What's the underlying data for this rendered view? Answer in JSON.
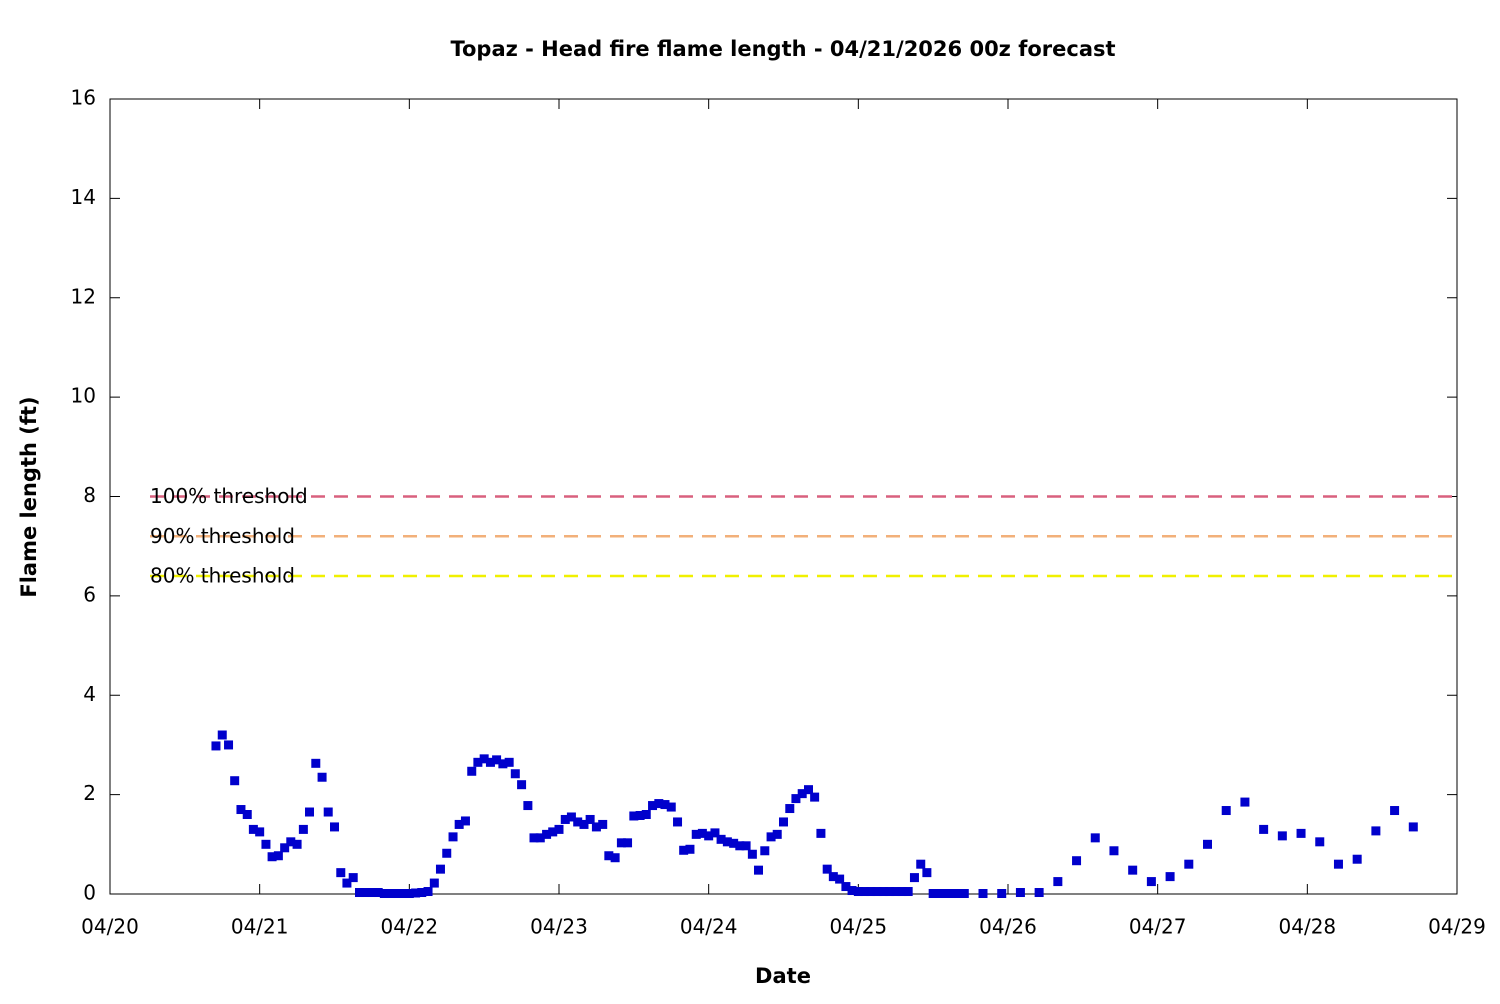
{
  "chart_data": {
    "type": "scatter",
    "title": "Topaz - Head fire flame length - 04/21/2026 00z forecast",
    "xlabel": "Date",
    "ylabel": "Flame length (ft)",
    "color": "#0000cc",
    "xlim": [
      0,
      9
    ],
    "xticks": [
      {
        "value": 0,
        "label": "04/20"
      },
      {
        "value": 1,
        "label": "04/21"
      },
      {
        "value": 2,
        "label": "04/22"
      },
      {
        "value": 3,
        "label": "04/23"
      },
      {
        "value": 4,
        "label": "04/24"
      },
      {
        "value": 5,
        "label": "04/25"
      },
      {
        "value": 6,
        "label": "04/26"
      },
      {
        "value": 7,
        "label": "04/27"
      },
      {
        "value": 8,
        "label": "04/28"
      },
      {
        "value": 9,
        "label": "04/29"
      }
    ],
    "ylim": [
      0,
      16
    ],
    "yticks": [
      0,
      2,
      4,
      6,
      8,
      10,
      12,
      14,
      16
    ],
    "thresholds": [
      {
        "name": "100% threshold",
        "value": 8,
        "color": "#d9607e"
      },
      {
        "name": "90% threshold",
        "value": 7.2,
        "color": "#f2b07a"
      },
      {
        "name": "80% threshold",
        "value": 6.4,
        "color": "#f0f000"
      }
    ],
    "x": [
      0.708,
      0.75,
      0.792,
      0.833,
      0.875,
      0.917,
      0.958,
      1,
      1.042,
      1.083,
      1.125,
      1.167,
      1.208,
      1.25,
      1.292,
      1.333,
      1.375,
      1.417,
      1.458,
      1.5,
      1.542,
      1.583,
      1.625,
      1.667,
      1.708,
      1.75,
      1.792,
      1.833,
      1.875,
      1.917,
      1.958,
      2,
      2.042,
      2.083,
      2.125,
      2.167,
      2.208,
      2.25,
      2.292,
      2.333,
      2.375,
      2.417,
      2.458,
      2.5,
      2.542,
      2.583,
      2.625,
      2.667,
      2.708,
      2.75,
      2.792,
      2.833,
      2.875,
      2.917,
      2.958,
      3,
      3.042,
      3.083,
      3.125,
      3.167,
      3.208,
      3.25,
      3.292,
      3.333,
      3.375,
      3.417,
      3.458,
      3.5,
      3.542,
      3.583,
      3.625,
      3.667,
      3.708,
      3.75,
      3.792,
      3.833,
      3.875,
      3.917,
      3.958,
      4,
      4.042,
      4.083,
      4.125,
      4.167,
      4.208,
      4.25,
      4.292,
      4.333,
      4.375,
      4.417,
      4.458,
      4.5,
      4.542,
      4.583,
      4.625,
      4.667,
      4.708,
      4.75,
      4.792,
      4.833,
      4.875,
      4.917,
      4.958,
      5,
      5.042,
      5.083,
      5.125,
      5.167,
      5.208,
      5.25,
      5.292,
      5.333,
      5.375,
      5.417,
      5.458,
      5.5,
      5.542,
      5.583,
      5.625,
      5.667,
      5.708,
      5.833,
      5.958,
      6.083,
      6.208,
      6.333,
      6.458,
      6.583,
      6.708,
      6.833,
      6.958,
      7.083,
      7.208,
      7.333,
      7.458,
      7.583,
      7.708,
      7.833,
      7.958,
      8.083,
      8.208,
      8.333,
      8.458,
      8.583,
      8.708
    ],
    "values": [
      2.98,
      3.2,
      3.0,
      2.28,
      1.7,
      1.6,
      1.3,
      1.25,
      1.0,
      0.75,
      0.77,
      0.93,
      1.05,
      1.0,
      1.3,
      1.65,
      2.63,
      2.35,
      1.65,
      1.35,
      0.43,
      0.22,
      0.33,
      0.03,
      0.03,
      0.03,
      0.03,
      0.01,
      0.01,
      0.01,
      0.01,
      0.01,
      0.02,
      0.03,
      0.05,
      0.22,
      0.5,
      0.82,
      1.15,
      1.4,
      1.47,
      2.47,
      2.65,
      2.72,
      2.65,
      2.7,
      2.62,
      2.65,
      2.42,
      2.2,
      1.78,
      1.13,
      1.13,
      1.2,
      1.25,
      1.3,
      1.5,
      1.55,
      1.45,
      1.4,
      1.5,
      1.35,
      1.4,
      0.77,
      0.73,
      1.03,
      1.03,
      1.57,
      1.58,
      1.6,
      1.78,
      1.82,
      1.8,
      1.75,
      1.45,
      0.88,
      0.9,
      1.2,
      1.22,
      1.17,
      1.23,
      1.1,
      1.05,
      1.02,
      0.97,
      0.97,
      0.8,
      0.48,
      0.87,
      1.15,
      1.2,
      1.45,
      1.72,
      1.92,
      2.02,
      2.1,
      1.95,
      1.22,
      0.5,
      0.35,
      0.3,
      0.15,
      0.07,
      0.05,
      0.05,
      0.05,
      0.05,
      0.05,
      0.05,
      0.05,
      0.05,
      0.05,
      0.33,
      0.6,
      0.43,
      0.01,
      0.01,
      0.01,
      0.01,
      0.01,
      0.01,
      0.01,
      0.01,
      0.03,
      0.03,
      0.25,
      0.67,
      1.13,
      0.87,
      0.48,
      0.25,
      0.35,
      0.6,
      1.0,
      1.68,
      1.85,
      1.3,
      1.17,
      1.22,
      1.05,
      0.6,
      0.7,
      1.27,
      1.68,
      1.35
    ]
  }
}
